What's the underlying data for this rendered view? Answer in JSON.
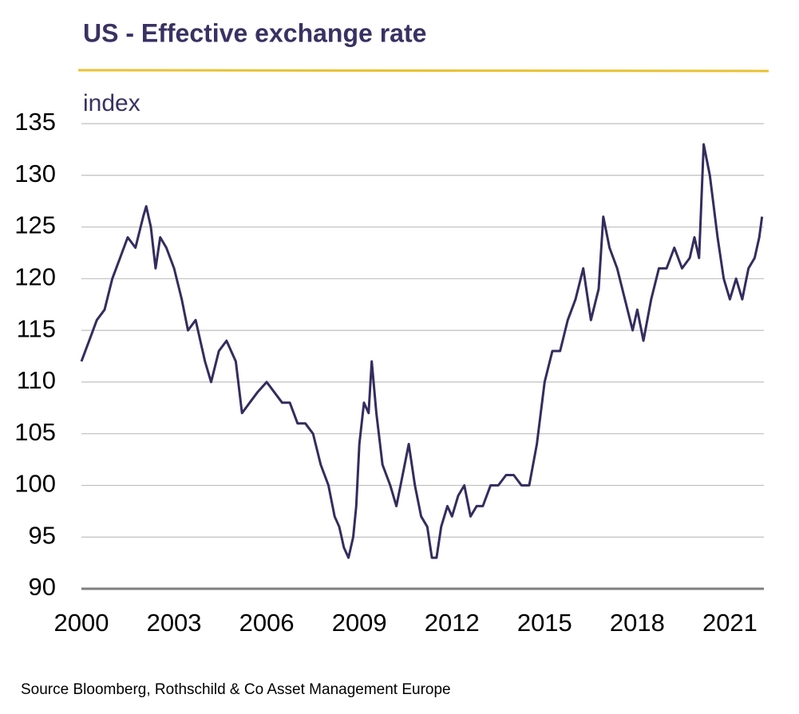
{
  "chart_data": {
    "type": "line",
    "title": "US - Effective exchange rate",
    "y_label": "index",
    "source": "Source Bloomberg, Rothschild & Co Asset Management Europe",
    "color": "#332d5e",
    "x": [
      2000.0,
      2000.25,
      2000.5,
      2000.75,
      2001.0,
      2001.25,
      2001.5,
      2001.75,
      2002.0,
      2002.1,
      2002.25,
      2002.4,
      2002.55,
      2002.75,
      2003.0,
      2003.25,
      2003.45,
      2003.7,
      2004.0,
      2004.2,
      2004.45,
      2004.7,
      2005.0,
      2005.2,
      2005.45,
      2005.7,
      2006.0,
      2006.25,
      2006.5,
      2006.75,
      2007.0,
      2007.25,
      2007.5,
      2007.75,
      2008.0,
      2008.2,
      2008.35,
      2008.5,
      2008.65,
      2008.8,
      2008.9,
      2009.0,
      2009.15,
      2009.3,
      2009.4,
      2009.55,
      2009.75,
      2010.0,
      2010.2,
      2010.4,
      2010.6,
      2010.8,
      2011.0,
      2011.2,
      2011.35,
      2011.5,
      2011.65,
      2011.85,
      2012.0,
      2012.2,
      2012.4,
      2012.6,
      2012.8,
      2013.0,
      2013.25,
      2013.5,
      2013.75,
      2014.0,
      2014.25,
      2014.5,
      2014.75,
      2015.0,
      2015.25,
      2015.5,
      2015.75,
      2016.0,
      2016.25,
      2016.5,
      2016.75,
      2016.9,
      2017.1,
      2017.35,
      2017.6,
      2017.85,
      2018.0,
      2018.2,
      2018.45,
      2018.7,
      2018.95,
      2019.2,
      2019.45,
      2019.7,
      2019.85,
      2020.0,
      2020.15,
      2020.35,
      2020.6,
      2020.8,
      2021.0,
      2021.2,
      2021.4,
      2021.6,
      2021.8,
      2021.95,
      2022.04
    ],
    "values": [
      112,
      114,
      116,
      117,
      120,
      122,
      124,
      123,
      126,
      127,
      125,
      121,
      124,
      123,
      121,
      118,
      115,
      116,
      112,
      110,
      113,
      114,
      112,
      107,
      108,
      109,
      110,
      109,
      108,
      108,
      106,
      106,
      105,
      102,
      100,
      97,
      96,
      94,
      93,
      95,
      98,
      104,
      108,
      107,
      112,
      107,
      102,
      100,
      98,
      101,
      104,
      100,
      97,
      96,
      93,
      93,
      96,
      98,
      97,
      99,
      100,
      97,
      98,
      98,
      100,
      100,
      101,
      101,
      100,
      100,
      104,
      110,
      113,
      113,
      116,
      118,
      121,
      116,
      119,
      126,
      123,
      121,
      118,
      115,
      117,
      114,
      118,
      121,
      121,
      123,
      121,
      122,
      124,
      122,
      133,
      130,
      124,
      120,
      118,
      120,
      118,
      121,
      122,
      124,
      126
    ],
    "xlim": [
      2000,
      2022.1
    ],
    "xticks": [
      2000,
      2003,
      2006,
      2009,
      2012,
      2015,
      2018,
      2021
    ],
    "ylim": [
      90,
      135
    ],
    "yticks": [
      90,
      95,
      100,
      105,
      110,
      115,
      120,
      125,
      130,
      135
    ],
    "grid": true
  }
}
